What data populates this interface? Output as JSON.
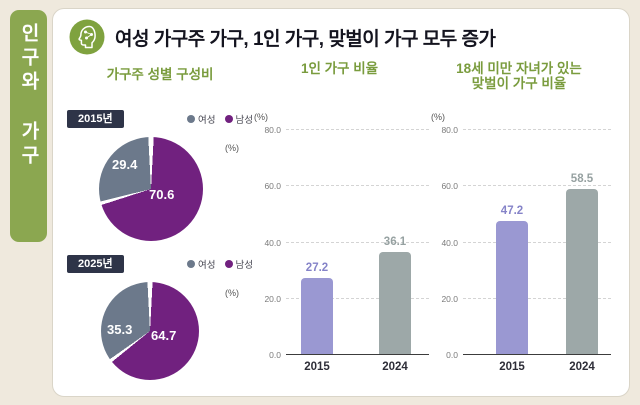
{
  "page": {
    "background": "#efe9dd"
  },
  "sidebar": {
    "label": "인구와 가구",
    "color": "#8ba750"
  },
  "header": {
    "title": "여성 가구주 가구, 1인 가구, 맞벌이 가구 모두 증가",
    "icon": "head-network-icon",
    "icon_color": "#7fa23f"
  },
  "colors": {
    "accent_green": "#7a9c3e",
    "female": "#6c798b",
    "male": "#71217f",
    "bar_2015": "#9a98d2",
    "bar_2024": "#9da8a8",
    "value_2015": "#8583c8",
    "value_2024": "#96a1a1",
    "year_chip_bg": "#2e3448"
  },
  "chart_data": [
    {
      "type": "pie",
      "title": "가구주 성별 구성비",
      "unit": "(%)",
      "legend": [
        {
          "label": "여성",
          "color": "#6c798b"
        },
        {
          "label": "남성",
          "color": "#71217f"
        }
      ],
      "pies": [
        {
          "year": "2015년",
          "values": {
            "여성": 29.4,
            "남성": 70.6
          }
        },
        {
          "year": "2025년",
          "values": {
            "여성": 35.3,
            "남성": 64.7
          }
        }
      ]
    },
    {
      "type": "bar",
      "title": "1인 가구 비율",
      "unit": "(%)",
      "categories": [
        "2015",
        "2024"
      ],
      "values": [
        27.2,
        36.1
      ],
      "ylim": [
        0,
        80
      ],
      "yticks": [
        "80.0",
        "60.0",
        "40.0",
        "20.0",
        "0.0"
      ],
      "grid": "dashed",
      "bar_colors": [
        "#9a98d2",
        "#9da8a8"
      ]
    },
    {
      "type": "bar",
      "title": "18세 미만 자녀가 있는\n맞벌이 가구 비율",
      "unit": "(%)",
      "categories": [
        "2015",
        "2024"
      ],
      "values": [
        47.2,
        58.5
      ],
      "ylim": [
        0,
        80
      ],
      "yticks": [
        "80.0",
        "60.0",
        "40.0",
        "20.0",
        "0.0"
      ],
      "grid": "dashed",
      "bar_colors": [
        "#9a98d2",
        "#9da8a8"
      ]
    }
  ]
}
